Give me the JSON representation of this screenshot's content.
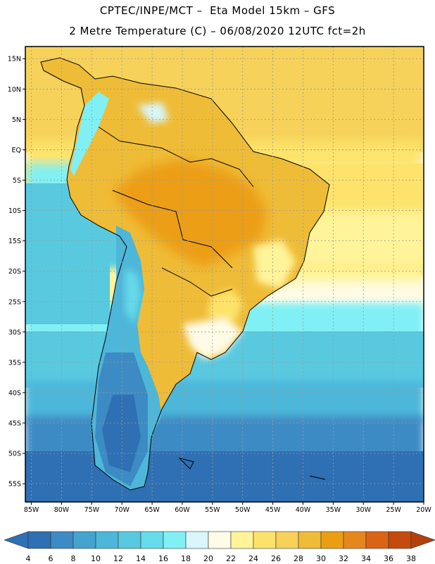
{
  "header": {
    "line1": "CPTEC/INPE/MCT –  Eta Model 15km – GFS",
    "line2": "2 Metre Temperature (C) – 06/08/2020 12UTC fct=2h"
  },
  "map": {
    "lon_range": [
      -86,
      -20
    ],
    "lat_range": [
      -58,
      17
    ],
    "lat_ticks": [
      {
        "value": 15,
        "label": "15N"
      },
      {
        "value": 10,
        "label": "10N"
      },
      {
        "value": 5,
        "label": "5N"
      },
      {
        "value": 0,
        "label": "EQ"
      },
      {
        "value": -5,
        "label": "5S"
      },
      {
        "value": -10,
        "label": "10S"
      },
      {
        "value": -15,
        "label": "15S"
      },
      {
        "value": -20,
        "label": "20S"
      },
      {
        "value": -25,
        "label": "25S"
      },
      {
        "value": -30,
        "label": "30S"
      },
      {
        "value": -35,
        "label": "35S"
      },
      {
        "value": -40,
        "label": "40S"
      },
      {
        "value": -45,
        "label": "45S"
      },
      {
        "value": -50,
        "label": "50S"
      },
      {
        "value": -55,
        "label": "55S"
      }
    ],
    "lon_ticks": [
      {
        "value": -85,
        "label": "85W"
      },
      {
        "value": -80,
        "label": "80W"
      },
      {
        "value": -75,
        "label": "75W"
      },
      {
        "value": -70,
        "label": "70W"
      },
      {
        "value": -65,
        "label": "65W"
      },
      {
        "value": -60,
        "label": "60W"
      },
      {
        "value": -55,
        "label": "55W"
      },
      {
        "value": -50,
        "label": "50W"
      },
      {
        "value": -45,
        "label": "45W"
      },
      {
        "value": -40,
        "label": "40W"
      },
      {
        "value": -35,
        "label": "35W"
      },
      {
        "value": -30,
        "label": "30W"
      },
      {
        "value": -25,
        "label": "25W"
      },
      {
        "value": -20,
        "label": "20W"
      }
    ],
    "colorbar": {
      "colors": [
        "#2f6fb3",
        "#3c8bc4",
        "#45a3cf",
        "#4db7da",
        "#59c9e0",
        "#66dbe9",
        "#80f0f5",
        "#d8f6fb",
        "#fffbe6",
        "#fff49a",
        "#fde36b",
        "#f6d25a",
        "#efbc37",
        "#ec9e12",
        "#e6871d",
        "#db6414",
        "#c44a0d"
      ],
      "labels": [
        "4",
        "6",
        "8",
        "10",
        "12",
        "14",
        "16",
        "18",
        "20",
        "22",
        "24",
        "26",
        "28",
        "30",
        "32",
        "34",
        "36",
        "38"
      ],
      "left_arrow_color": "#2f6fb3",
      "right_arrow_color": "#b3400b"
    }
  }
}
